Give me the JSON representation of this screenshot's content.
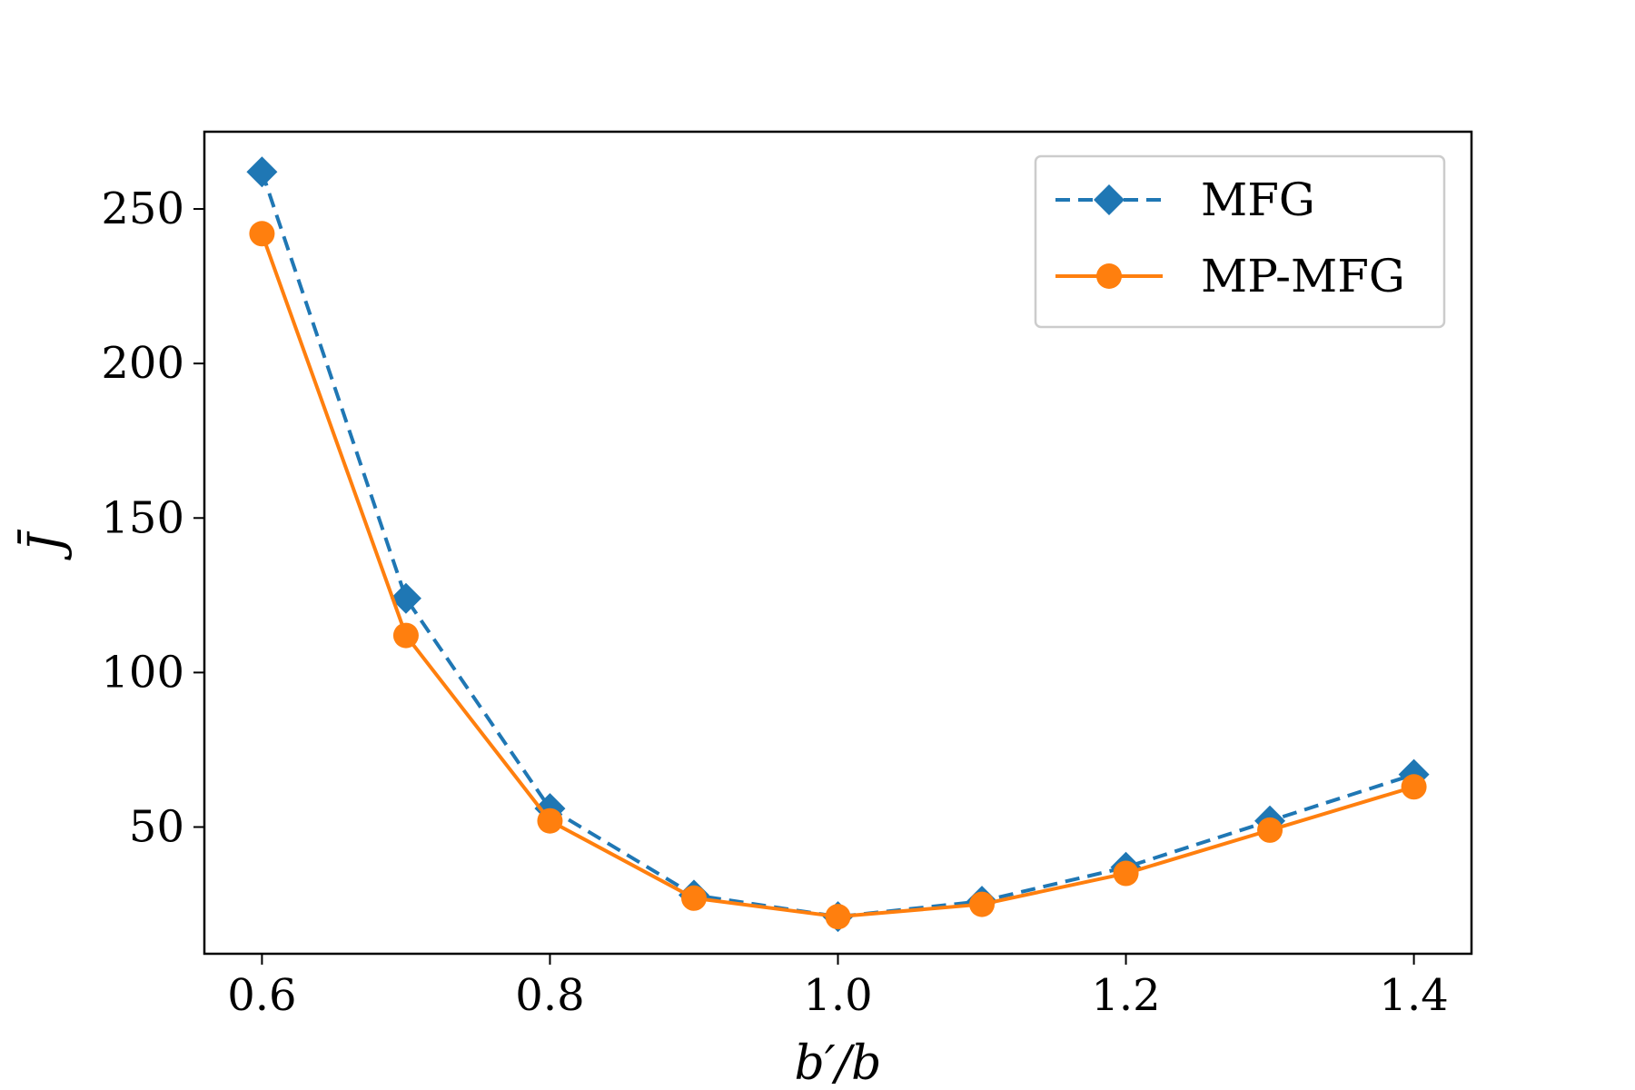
{
  "chart_data": {
    "type": "line",
    "title": "",
    "xlabel": "b′/b",
    "ylabel": "J̄",
    "xlim": [
      0.56,
      1.44
    ],
    "ylim": [
      9,
      275
    ],
    "x_ticks": [
      0.6,
      0.8,
      1.0,
      1.2,
      1.4
    ],
    "x_tick_labels": [
      "0.6",
      "0.8",
      "1.0",
      "1.2",
      "1.4"
    ],
    "y_ticks": [
      50,
      100,
      150,
      200,
      250
    ],
    "y_tick_labels": [
      "50",
      "100",
      "150",
      "200",
      "250"
    ],
    "grid": false,
    "legend_position": "top-right",
    "x": [
      0.6,
      0.7,
      0.8,
      0.9,
      1.0,
      1.1,
      1.2,
      1.3,
      1.4
    ],
    "series": [
      {
        "name": "MFG",
        "color": "#1f77b4",
        "line_style": "dashed",
        "marker": "diamond",
        "values": [
          262,
          124,
          56,
          28,
          21,
          26,
          37,
          52,
          67
        ]
      },
      {
        "name": "MP-MFG",
        "color": "#ff7f0e",
        "line_style": "solid",
        "marker": "circle",
        "values": [
          242,
          112,
          52,
          27,
          21,
          25,
          35,
          49,
          63
        ]
      }
    ]
  }
}
